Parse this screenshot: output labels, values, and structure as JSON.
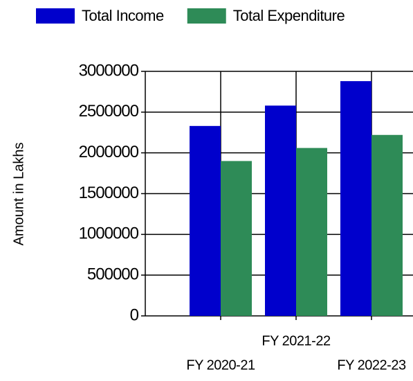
{
  "chart_data": {
    "type": "bar",
    "y_label": "Amount in Lakhs",
    "categories": [
      "FY 2020-21",
      "FY 2021-22",
      "FY 2022-23"
    ],
    "series": [
      {
        "name": "Total Income",
        "color": "#0000cc",
        "values": [
          2330000,
          2580000,
          2880000
        ]
      },
      {
        "name": "Total Expenditure",
        "color": "#2e8b57",
        "values": [
          1900000,
          2060000,
          2220000
        ]
      }
    ],
    "ylim": [
      0,
      3000000
    ],
    "yticks": [
      0,
      500000,
      1000000,
      1500000,
      2000000,
      2500000,
      3000000
    ],
    "grid": true,
    "legend": "top"
  }
}
